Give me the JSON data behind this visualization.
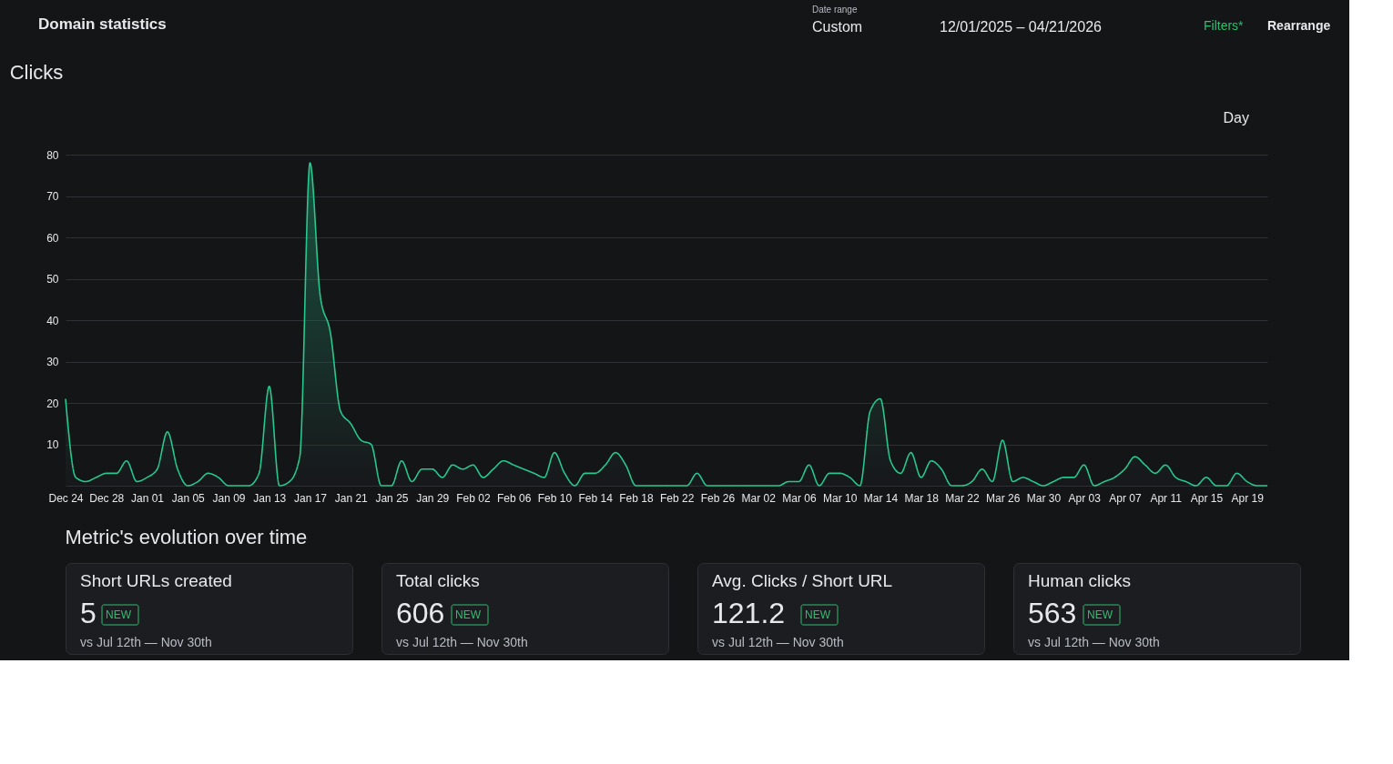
{
  "chart_data": {
    "type": "area",
    "title": "Clicks",
    "annotations": [
      "Domain statistics",
      "Date range",
      "Custom",
      "12/01/2025 – 04/21/2026",
      "Filters*",
      "Rearrange",
      "Day",
      "Metric's evolution over time",
      "Short URLs created",
      "5",
      "NEW",
      "vs  Jul 12th — Nov 30th",
      "Total clicks",
      "606",
      "NEW",
      "vs  Jul 12th — Nov 30th",
      "Avg. Clicks / Short URL",
      "121.2",
      "NEW",
      "vs  Jul 12th — Nov 30th",
      "Human clicks",
      "563",
      "NEW",
      "vs  Jul 12th — Nov 30th"
    ],
    "x": [
      "2025-12-24",
      "2025-12-25",
      "2025-12-26",
      "2025-12-27",
      "2025-12-28",
      "2025-12-29",
      "2025-12-30",
      "2025-12-31",
      "2026-01-01",
      "2026-01-02",
      "2026-01-03",
      "2026-01-04",
      "2026-01-05",
      "2026-01-06",
      "2026-01-07",
      "2026-01-08",
      "2026-01-09",
      "2026-01-10",
      "2026-01-11",
      "2026-01-12",
      "2026-01-13",
      "2026-01-14",
      "2026-01-15",
      "2026-01-16",
      "2026-01-17",
      "2026-01-18",
      "2026-01-19",
      "2026-01-20",
      "2026-01-21",
      "2026-01-22",
      "2026-01-23",
      "2026-01-24",
      "2026-01-25",
      "2026-01-26",
      "2026-01-27",
      "2026-01-28",
      "2026-01-29",
      "2026-01-30",
      "2026-01-31",
      "2026-02-01",
      "2026-02-02",
      "2026-02-03",
      "2026-02-04",
      "2026-02-05",
      "2026-02-06",
      "2026-02-07",
      "2026-02-08",
      "2026-02-09",
      "2026-02-10",
      "2026-02-11",
      "2026-02-12",
      "2026-02-13",
      "2026-02-14",
      "2026-02-15",
      "2026-02-16",
      "2026-02-17",
      "2026-02-18",
      "2026-02-19",
      "2026-02-20",
      "2026-02-21",
      "2026-02-22",
      "2026-02-23",
      "2026-02-24",
      "2026-02-25",
      "2026-02-26",
      "2026-02-27",
      "2026-02-28",
      "2026-03-01",
      "2026-03-02",
      "2026-03-03",
      "2026-03-04",
      "2026-03-05",
      "2026-03-06",
      "2026-03-07",
      "2026-03-08",
      "2026-03-09",
      "2026-03-10",
      "2026-03-11",
      "2026-03-12",
      "2026-03-13",
      "2026-03-14",
      "2026-03-15",
      "2026-03-16",
      "2026-03-17",
      "2026-03-18",
      "2026-03-19",
      "2026-03-20",
      "2026-03-21",
      "2026-03-22",
      "2026-03-23",
      "2026-03-24",
      "2026-03-25",
      "2026-03-26",
      "2026-03-27",
      "2026-03-28",
      "2026-03-29",
      "2026-03-30",
      "2026-03-31",
      "2026-04-01",
      "2026-04-02",
      "2026-04-03",
      "2026-04-04",
      "2026-04-05",
      "2026-04-06",
      "2026-04-07",
      "2026-04-08",
      "2026-04-09",
      "2026-04-10",
      "2026-04-11",
      "2026-04-12",
      "2026-04-13",
      "2026-04-14",
      "2026-04-15",
      "2026-04-16",
      "2026-04-17",
      "2026-04-18",
      "2026-04-19",
      "2026-04-20",
      "2026-04-21"
    ],
    "series": [
      {
        "color": "#26c88e",
        "values": [
          21,
          2,
          1,
          2,
          3,
          3,
          6,
          1,
          2,
          4,
          13,
          4,
          0,
          1,
          3,
          2,
          0,
          0,
          0,
          3,
          24,
          0,
          1,
          7,
          78,
          46,
          37,
          18,
          15,
          11,
          10,
          0,
          0,
          6,
          1,
          4,
          4,
          2,
          5,
          4,
          5,
          2,
          4,
          6,
          5,
          4,
          3,
          2,
          8,
          3,
          0,
          3,
          3,
          5,
          8,
          5,
          0,
          0,
          0,
          0,
          0,
          0,
          3,
          0,
          0,
          0,
          0,
          0,
          0,
          0,
          0,
          1,
          1,
          5,
          0,
          3,
          3,
          2,
          0,
          18,
          21,
          6,
          3,
          8,
          2,
          6,
          4,
          0,
          0,
          1,
          4,
          1,
          11,
          1,
          2,
          1,
          0,
          1,
          2,
          2,
          5,
          0,
          1,
          2,
          4,
          7,
          5,
          3,
          5,
          2,
          1,
          0,
          2,
          0,
          0,
          3,
          1,
          0,
          0
        ]
      }
    ],
    "xlim": [
      "2025-12-24",
      "2026-04-21"
    ],
    "xticks": [
      {
        "value": "2025-12-24",
        "label": "Dec 24"
      },
      {
        "value": "2025-12-28",
        "label": "Dec 28"
      },
      {
        "value": "2026-01-01",
        "label": "Jan 01"
      },
      {
        "value": "2026-01-05",
        "label": "Jan 05"
      },
      {
        "value": "2026-01-09",
        "label": "Jan 09"
      },
      {
        "value": "2026-01-13",
        "label": "Jan 13"
      },
      {
        "value": "2026-01-17",
        "label": "Jan 17"
      },
      {
        "value": "2026-01-21",
        "label": "Jan 21"
      },
      {
        "value": "2026-01-25",
        "label": "Jan 25"
      },
      {
        "value": "2026-01-29",
        "label": "Jan 29"
      },
      {
        "value": "2026-02-02",
        "label": "Feb 02"
      },
      {
        "value": "2026-02-06",
        "label": "Feb 06"
      },
      {
        "value": "2026-02-10",
        "label": "Feb 10"
      },
      {
        "value": "2026-02-14",
        "label": "Feb 14"
      },
      {
        "value": "2026-02-18",
        "label": "Feb 18"
      },
      {
        "value": "2026-02-22",
        "label": "Feb 22"
      },
      {
        "value": "2026-02-26",
        "label": "Feb 26"
      },
      {
        "value": "2026-03-02",
        "label": "Mar 02"
      },
      {
        "value": "2026-03-06",
        "label": "Mar 06"
      },
      {
        "value": "2026-03-10",
        "label": "Mar 10"
      },
      {
        "value": "2026-03-14",
        "label": "Mar 14"
      },
      {
        "value": "2026-03-18",
        "label": "Mar 18"
      },
      {
        "value": "2026-03-22",
        "label": "Mar 22"
      },
      {
        "value": "2026-03-26",
        "label": "Mar 26"
      },
      {
        "value": "2026-03-30",
        "label": "Mar 30"
      },
      {
        "value": "2026-04-03",
        "label": "Apr 03"
      },
      {
        "value": "2026-04-07",
        "label": "Apr 07"
      },
      {
        "value": "2026-04-11",
        "label": "Apr 11"
      },
      {
        "value": "2026-04-15",
        "label": "Apr 15"
      },
      {
        "value": "2026-04-19",
        "label": "Apr 19"
      }
    ],
    "ylim": [
      0,
      80
    ],
    "yticks": [
      {
        "value": 0,
        "label": null
      },
      10,
      20,
      30,
      40,
      50,
      60,
      70,
      80
    ],
    "grid": "y",
    "marker": "none",
    "line_style": "solid"
  }
}
